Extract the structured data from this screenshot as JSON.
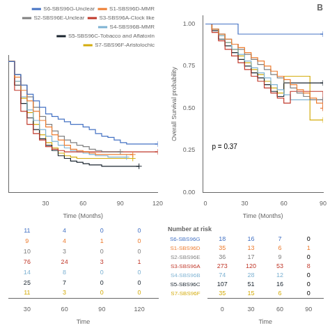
{
  "chart_data": [
    {
      "type": "step",
      "xlabel": "Time (Months)",
      "xlim": [
        0,
        120
      ],
      "xticks": [
        30,
        60,
        90,
        120
      ],
      "ylim": [
        0,
        1.05
      ],
      "grid": false,
      "tick_labels": "x",
      "legend": "upper right",
      "marker": "plus",
      "series": [
        {
          "name": "S6-SBS96G-Unclear",
          "color": "#4472C4",
          "x": [
            0,
            5,
            10,
            15,
            20,
            25,
            30,
            35,
            40,
            45,
            50,
            55,
            60,
            65,
            70,
            75,
            80,
            85,
            90,
            95,
            100,
            105,
            110,
            115,
            120
          ],
          "values": [
            1.0,
            0.9,
            0.82,
            0.75,
            0.7,
            0.65,
            0.6,
            0.58,
            0.56,
            0.54,
            0.52,
            0.52,
            0.5,
            0.48,
            0.45,
            0.43,
            0.42,
            0.4,
            0.38,
            0.37,
            0.37,
            0.37,
            0.37,
            0.37,
            0.37
          ]
        },
        {
          "name": "S1-SBS96D-MMR",
          "color": "#ED7D31",
          "x": [
            0,
            5,
            10,
            15,
            20,
            25,
            30,
            35,
            40,
            45,
            50,
            55,
            60,
            65,
            70,
            75,
            80,
            85,
            90,
            95,
            100
          ],
          "values": [
            1.0,
            0.88,
            0.78,
            0.7,
            0.62,
            0.55,
            0.5,
            0.44,
            0.4,
            0.36,
            0.33,
            0.32,
            0.31,
            0.3,
            0.29,
            0.29,
            0.29,
            0.29,
            0.29,
            0.29,
            0.29
          ]
        },
        {
          "name": "S2-SBS96E-Unclear",
          "color": "#808080",
          "x": [
            0,
            5,
            10,
            15,
            20,
            25,
            30,
            35,
            40,
            45,
            50,
            55,
            60,
            65,
            70,
            75,
            80,
            85,
            90
          ],
          "values": [
            1.0,
            0.9,
            0.82,
            0.73,
            0.65,
            0.58,
            0.52,
            0.47,
            0.43,
            0.4,
            0.38,
            0.36,
            0.35,
            0.33,
            0.32,
            0.31,
            0.31,
            0.31,
            0.31
          ]
        },
        {
          "name": "S3-SBS96A-Clock like",
          "color": "#C0392B",
          "x": [
            0,
            5,
            10,
            15,
            20,
            25,
            30,
            35,
            40,
            45,
            50,
            55,
            60,
            65,
            70,
            75,
            80,
            85,
            90,
            95,
            100,
            105,
            110,
            115,
            120
          ],
          "values": [
            1.0,
            0.78,
            0.62,
            0.52,
            0.45,
            0.4,
            0.35,
            0.33,
            0.32,
            0.31,
            0.31,
            0.31,
            0.31,
            0.31,
            0.31,
            0.31,
            0.31,
            0.31,
            0.31,
            0.31,
            0.31,
            0.31,
            0.31,
            0.31,
            0.31
          ]
        },
        {
          "name": "S4-SBS96B-MMR",
          "color": "#7FB3D3",
          "x": [
            0,
            5,
            10,
            15,
            20,
            25,
            30,
            35,
            40,
            45,
            50,
            55,
            60,
            65,
            70,
            75,
            80,
            85,
            90,
            95
          ],
          "values": [
            1.0,
            0.85,
            0.73,
            0.63,
            0.55,
            0.48,
            0.43,
            0.39,
            0.36,
            0.34,
            0.32,
            0.31,
            0.3,
            0.29,
            0.28,
            0.28,
            0.27,
            0.27,
            0.27,
            0.27
          ]
        },
        {
          "name": "S5-SBS96C-Tobacco and Aflatoxin",
          "color": "#1A252F",
          "x": [
            0,
            5,
            10,
            15,
            20,
            25,
            30,
            35,
            40,
            45,
            50,
            55,
            60,
            65,
            70,
            75,
            80,
            85,
            90,
            95,
            100,
            105
          ],
          "values": [
            1.0,
            0.82,
            0.68,
            0.57,
            0.48,
            0.41,
            0.36,
            0.32,
            0.28,
            0.26,
            0.24,
            0.23,
            0.22,
            0.21,
            0.21,
            0.2,
            0.2,
            0.2,
            0.2,
            0.2,
            0.2,
            0.2
          ]
        },
        {
          "name": "S7-SBS96F-Aristolochic",
          "color": "#D4AC0D",
          "x": [
            0,
            5,
            10,
            15,
            20,
            25,
            30,
            35,
            40,
            45,
            50,
            55,
            60,
            65,
            70,
            75,
            80,
            85,
            90,
            95,
            100
          ],
          "values": [
            1.0,
            0.85,
            0.72,
            0.61,
            0.52,
            0.44,
            0.38,
            0.34,
            0.3,
            0.28,
            0.27,
            0.26,
            0.26,
            0.26,
            0.26,
            0.26,
            0.26,
            0.26,
            0.26,
            0.26,
            0.26
          ]
        }
      ]
    },
    {
      "type": "step",
      "title": "B",
      "xlabel": "Time (Months)",
      "ylabel": "Overall Survival probability",
      "xlim": [
        -2,
        90
      ],
      "xticks": [
        0,
        30,
        60,
        90
      ],
      "ylim": [
        0.0,
        1.05
      ],
      "yticks": [
        {
          "value": 0,
          "label": "0.00"
        },
        0.25,
        {
          "value": 0.5,
          "label": "0.50"
        },
        0.75,
        {
          "value": 1,
          "label": "1.00"
        }
      ],
      "grid": false,
      "marker": "plus",
      "annotations": [
        {
          "text": "p = 0.37",
          "x": 5,
          "y": 0.25
        }
      ],
      "series": [
        {
          "color": "#4472C4",
          "x": [
            0,
            5,
            10,
            15,
            20,
            25,
            30,
            35,
            40,
            45,
            50,
            55,
            60,
            65,
            70,
            75,
            80,
            85,
            90
          ],
          "values": [
            1.0,
            1.0,
            1.0,
            1.0,
            1.0,
            0.94,
            0.94,
            0.94,
            0.94,
            0.94,
            0.94,
            0.94,
            0.94,
            0.94,
            0.94,
            0.94,
            0.94,
            0.94,
            0.94
          ]
        },
        {
          "color": "#ED7D31",
          "x": [
            0,
            5,
            10,
            15,
            20,
            25,
            30,
            35,
            40,
            45,
            50,
            55,
            60,
            65,
            70,
            75,
            80,
            85,
            90
          ],
          "values": [
            1.0,
            0.97,
            0.94,
            0.91,
            0.88,
            0.86,
            0.83,
            0.8,
            0.78,
            0.75,
            0.72,
            0.69,
            0.67,
            0.64,
            0.61,
            0.59,
            0.56,
            0.53,
            0.5
          ]
        },
        {
          "color": "#808080",
          "x": [
            0,
            5,
            10,
            15,
            20,
            25,
            30,
            35,
            40,
            45,
            50,
            55,
            60,
            65,
            70,
            75,
            80,
            85,
            90
          ],
          "values": [
            1.0,
            0.97,
            0.94,
            0.91,
            0.88,
            0.85,
            0.82,
            0.79,
            0.76,
            0.73,
            0.7,
            0.68,
            0.65,
            0.62,
            0.59,
            0.57,
            0.55,
            0.55,
            0.55
          ]
        },
        {
          "color": "#C0392B",
          "x": [
            0,
            5,
            10,
            15,
            20,
            25,
            30,
            35,
            40,
            45,
            50,
            55,
            60,
            65,
            70,
            75,
            80,
            85,
            90
          ],
          "values": [
            1.0,
            0.95,
            0.9,
            0.85,
            0.81,
            0.77,
            0.73,
            0.69,
            0.66,
            0.62,
            0.59,
            0.56,
            0.53,
            0.6,
            0.6,
            0.6,
            0.6,
            0.6,
            0.5
          ]
        },
        {
          "color": "#7FB3D3",
          "x": [
            0,
            5,
            10,
            15,
            20,
            25,
            30,
            35,
            40,
            45,
            50,
            55,
            60,
            65,
            70,
            75,
            80,
            85,
            90
          ],
          "values": [
            1.0,
            0.97,
            0.93,
            0.89,
            0.85,
            0.82,
            0.78,
            0.74,
            0.71,
            0.68,
            0.64,
            0.61,
            0.58,
            0.55,
            0.55,
            0.55,
            0.55,
            0.55,
            0.55
          ]
        },
        {
          "color": "#1A252F",
          "x": [
            0,
            5,
            10,
            15,
            20,
            25,
            30,
            35,
            40,
            45,
            50,
            55,
            60,
            65,
            70,
            75,
            80,
            85,
            90
          ],
          "values": [
            1.0,
            0.96,
            0.91,
            0.87,
            0.83,
            0.79,
            0.75,
            0.71,
            0.68,
            0.64,
            0.6,
            0.57,
            0.65,
            0.65,
            0.65,
            0.65,
            0.65,
            0.65,
            0.65
          ]
        },
        {
          "color": "#D4AC0D",
          "x": [
            0,
            5,
            10,
            15,
            20,
            25,
            30,
            35,
            40,
            45,
            50,
            55,
            60,
            65,
            70,
            75,
            80,
            85,
            90
          ],
          "values": [
            1.0,
            0.97,
            0.93,
            0.89,
            0.85,
            0.81,
            0.77,
            0.73,
            0.7,
            0.66,
            0.62,
            0.59,
            0.69,
            0.69,
            0.69,
            0.69,
            0.43,
            0.43,
            0.43
          ]
        }
      ]
    },
    {
      "type": "table",
      "xlabel": "Time",
      "x": [
        30,
        60,
        90,
        120
      ],
      "xlim": [
        15,
        135
      ],
      "xticks": [
        30,
        60,
        90,
        120
      ],
      "grid": false,
      "tick_labels": "x",
      "series": [
        {
          "color": "#4472C4",
          "values": [
            11,
            4,
            0,
            0
          ]
        },
        {
          "color": "#ED7D31",
          "values": [
            9,
            4,
            1,
            0
          ]
        },
        {
          "color": "#808080",
          "values": [
            10,
            3,
            0,
            0
          ]
        },
        {
          "color": "#C0392B",
          "values": [
            76,
            24,
            3,
            1
          ]
        },
        {
          "color": "#7FB3D3",
          "values": [
            14,
            8,
            0,
            0
          ]
        },
        {
          "color": "#1A252F",
          "values": [
            25,
            7,
            0,
            0
          ]
        },
        {
          "color": "#D4AC0D",
          "values": [
            11,
            3,
            0,
            0
          ]
        }
      ]
    },
    {
      "type": "table",
      "title": "Number at risk",
      "xlabel": "Time",
      "x": [
        0,
        30,
        60,
        90
      ],
      "xlim": [
        -15,
        105
      ],
      "xticks": [
        0,
        30,
        60,
        90
      ],
      "grid": false,
      "series": [
        {
          "name": "S6-SBS96G",
          "color": "#4472C4",
          "colors": [
            "#4472C4",
            "#4472C4",
            "#4472C4",
            "black"
          ],
          "values": [
            18,
            16,
            7,
            0
          ]
        },
        {
          "name": "S1-SBS96D",
          "color": "#ED7D31",
          "colors": [
            "#ED7D31",
            "#ED7D31",
            "#ED7D31",
            "#ED7D31"
          ],
          "values": [
            35,
            13,
            6,
            1
          ]
        },
        {
          "name": "S2-SBS96E",
          "color": "#808080",
          "colors": [
            "#808080",
            "#808080",
            "#808080",
            "black"
          ],
          "values": [
            36,
            17,
            9,
            0
          ]
        },
        {
          "name": "S3-SBS96A",
          "color": "#C0392B",
          "colors": [
            "#C0392B",
            "#C0392B",
            "#C0392B",
            "#C0392B"
          ],
          "values": [
            273,
            120,
            53,
            8
          ]
        },
        {
          "name": "S4-SBS96B",
          "color": "#7FB3D3",
          "colors": [
            "#7FB3D3",
            "#7FB3D3",
            "#7FB3D3",
            "black"
          ],
          "values": [
            74,
            28,
            12,
            0
          ]
        },
        {
          "name": "S5-SBS96C",
          "color": "#1A252F",
          "colors": [
            "#1A252F",
            "#1A252F",
            "#1A252F",
            "black"
          ],
          "values": [
            107,
            51,
            16,
            0
          ]
        },
        {
          "name": "S7-SBS96F",
          "color": "#D4AC0D",
          "colors": [
            "#D4AC0D",
            "#D4AC0D",
            "#D4AC0D",
            "black"
          ],
          "values": [
            35,
            15,
            6,
            0
          ]
        }
      ]
    }
  ]
}
